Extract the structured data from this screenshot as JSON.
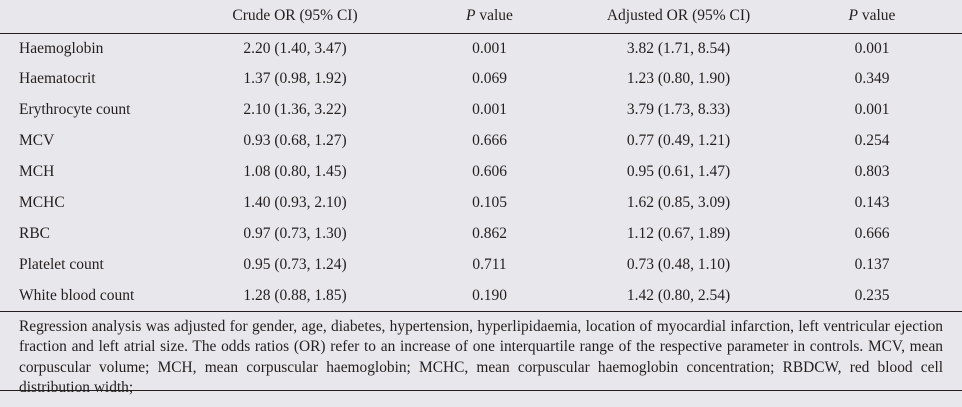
{
  "table": {
    "headers": {
      "crude": "Crude OR (95% CI)",
      "p1_letter": "P",
      "p1_rest": " value",
      "adjusted": "Adjusted OR (95% CI)",
      "p2_letter": "P",
      "p2_rest": " value"
    },
    "rows": [
      {
        "label": "Haemoglobin",
        "crude": "2.20 (1.40, 3.47)",
        "p1": "0.001",
        "adjusted": "3.82 (1.71, 8.54)",
        "p2": "0.001"
      },
      {
        "label": "Haematocrit",
        "crude": "1.37 (0.98, 1.92)",
        "p1": "0.069",
        "adjusted": "1.23 (0.80, 1.90)",
        "p2": "0.349"
      },
      {
        "label": "Erythrocyte count",
        "crude": "2.10 (1.36, 3.22)",
        "p1": "0.001",
        "adjusted": "3.79 (1.73, 8.33)",
        "p2": "0.001"
      },
      {
        "label": "MCV",
        "crude": "0.93 (0.68, 1.27)",
        "p1": "0.666",
        "adjusted": "0.77 (0.49, 1.21)",
        "p2": "0.254"
      },
      {
        "label": "MCH",
        "crude": "1.08 (0.80, 1.45)",
        "p1": "0.606",
        "adjusted": "0.95 (0.61, 1.47)",
        "p2": "0.803"
      },
      {
        "label": "MCHC",
        "crude": "1.40 (0.93, 2.10)",
        "p1": "0.105",
        "adjusted": "1.62 (0.85, 3.09)",
        "p2": "0.143"
      },
      {
        "label": "RBC",
        "crude": "0.97 (0.73, 1.30)",
        "p1": "0.862",
        "adjusted": "1.12 (0.67, 1.89)",
        "p2": "0.666"
      },
      {
        "label": "Platelet count",
        "crude": "0.95 (0.73, 1.24)",
        "p1": "0.711",
        "adjusted": "0.73 (0.48, 1.10)",
        "p2": "0.137"
      },
      {
        "label": "White blood count",
        "crude": "1.28 (0.88, 1.85)",
        "p1": "0.190",
        "adjusted": "1.42 (0.80, 2.54)",
        "p2": "0.235"
      }
    ],
    "footnote": "Regression analysis was adjusted for gender, age, diabetes, hypertension, hyperlipidaemia, location of myocardial infarction, left ventricular ejection fraction and left atrial size. The odds ratios (OR) refer to an increase of one interquartile range of the respective parameter in controls. MCV, mean corpuscular volume; MCH, mean corpuscular haemoglobin; MCHC, mean corpuscular haemoglobin concentration; RBDCW, red blood cell distribution width;"
  }
}
